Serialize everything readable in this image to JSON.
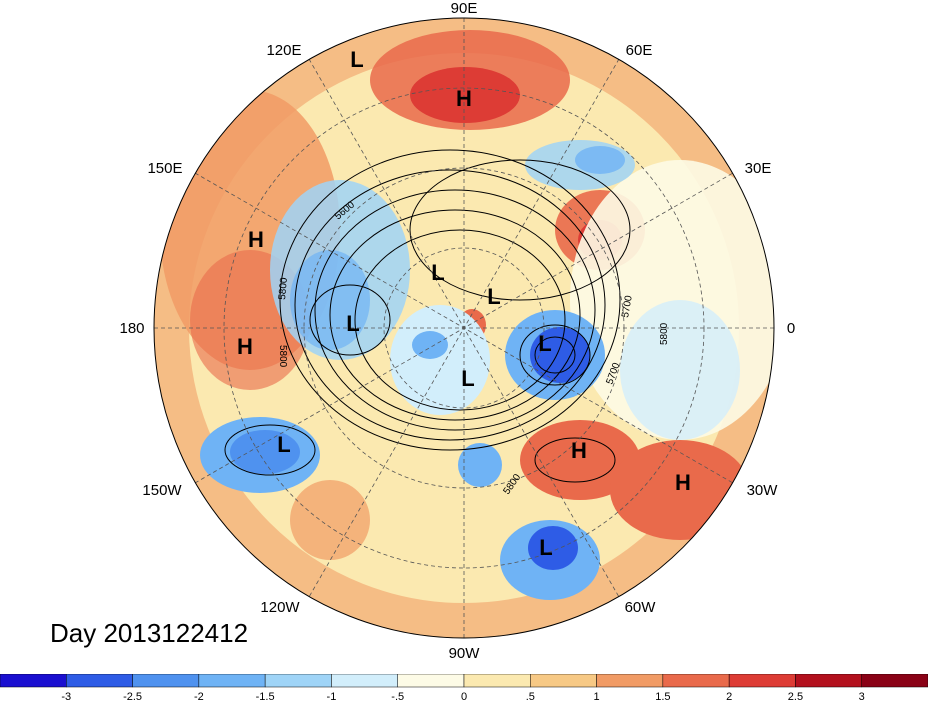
{
  "title": "Day 2013122412",
  "longitude_labels": [
    "90E",
    "60E",
    "30E",
    "0",
    "30W",
    "60W",
    "90W",
    "120W",
    "150W",
    "180",
    "150E",
    "120E"
  ],
  "contour_labels": [
    "5600",
    "5800",
    "5800",
    "5700",
    "5800",
    "5700",
    "5800"
  ],
  "pressure_centers": [
    {
      "label": "L"
    },
    {
      "label": "H"
    },
    {
      "label": "H"
    },
    {
      "label": "L"
    },
    {
      "label": "L"
    },
    {
      "label": "L"
    },
    {
      "label": "L"
    },
    {
      "label": "H"
    },
    {
      "label": "L"
    },
    {
      "label": "H"
    },
    {
      "label": "H"
    },
    {
      "label": "L"
    },
    {
      "label": "L"
    }
  ],
  "colorbar": {
    "ticks": [
      "-3",
      "-2.5",
      "-2",
      "-1.5",
      "-1",
      "-.5",
      "0",
      ".5",
      "1",
      "1.5",
      "2",
      "2.5",
      "3"
    ],
    "colors": [
      "#1a0fd0",
      "#2e5ce6",
      "#4f92ef",
      "#6fb3f5",
      "#9fd4f7",
      "#d2eefb",
      "#fdfbe6",
      "#fbe9b0",
      "#f7c985",
      "#f19b65",
      "#e96a4b",
      "#dd3c35",
      "#b3101d",
      "#8a0216"
    ]
  }
}
